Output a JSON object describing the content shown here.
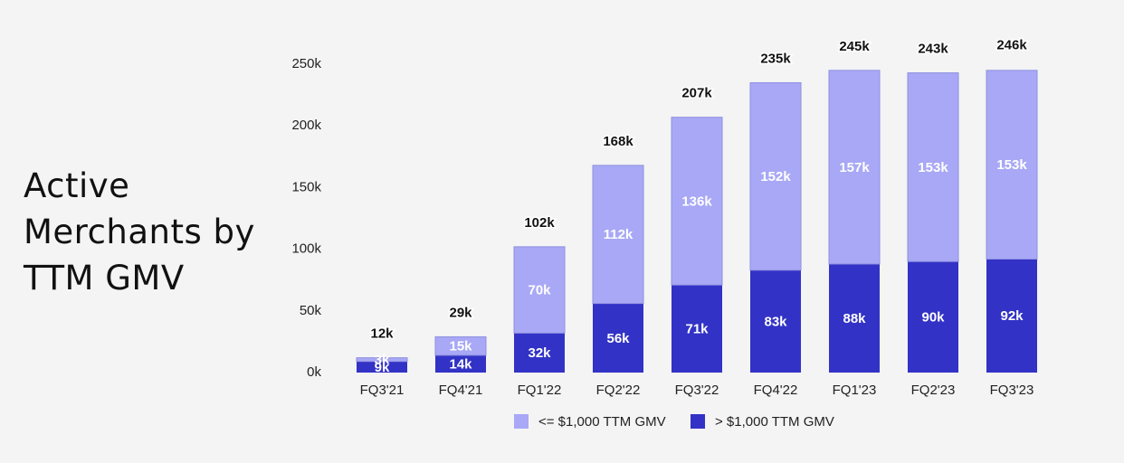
{
  "chart_data": {
    "type": "stacked_bar",
    "title": "Active Merchants by TTM GMV",
    "categories": [
      "FQ3'21",
      "FQ4'21",
      "FQ1'22",
      "FQ2'22",
      "FQ3'22",
      "FQ4'22",
      "FQ1'23",
      "FQ2'23",
      "FQ3'23"
    ],
    "series": [
      {
        "name": "<= $1,000 TTM GMV",
        "color": "#a8a8f6",
        "values": [
          3000,
          15000,
          70000,
          112000,
          136000,
          152000,
          157000,
          153000,
          153000
        ],
        "value_labels": [
          "3k",
          "15k",
          "70k",
          "112k",
          "136k",
          "152k",
          "157k",
          "153k",
          "153k"
        ]
      },
      {
        "name": "> $1,000 TTM GMV",
        "color": "#3232c6",
        "values": [
          9000,
          14000,
          32000,
          56000,
          71000,
          83000,
          88000,
          90000,
          92000
        ],
        "value_labels": [
          "9k",
          "14k",
          "32k",
          "56k",
          "71k",
          "83k",
          "88k",
          "90k",
          "92k"
        ]
      }
    ],
    "totals": [
      12000,
      29000,
      102000,
      168000,
      207000,
      235000,
      245000,
      243000,
      246000
    ],
    "total_labels": [
      "12k",
      "29k",
      "102k",
      "168k",
      "207k",
      "235k",
      "245k",
      "243k",
      "246k"
    ],
    "ylim": [
      0,
      250000
    ],
    "yticks": [
      {
        "value": 0,
        "label": "0k"
      },
      {
        "value": 50000,
        "label": "50k"
      },
      {
        "value": 100000,
        "label": "100k"
      },
      {
        "value": 150000,
        "label": "150k"
      },
      {
        "value": 200000,
        "label": "200k"
      },
      {
        "value": 250000,
        "label": "250k"
      }
    ],
    "grid": false,
    "legend": "bottom"
  }
}
